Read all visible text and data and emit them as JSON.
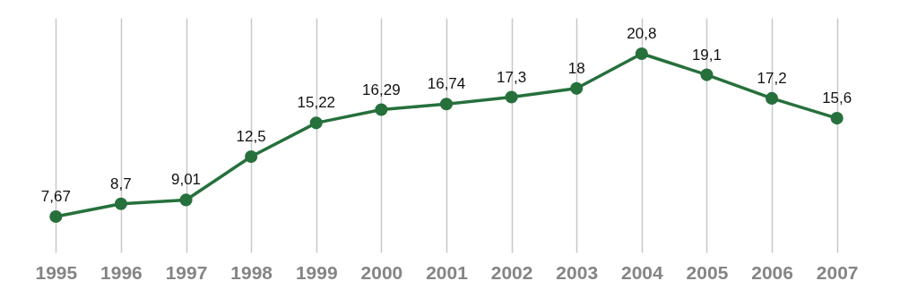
{
  "chart_data": {
    "type": "line",
    "categories": [
      "1995",
      "1996",
      "1997",
      "1998",
      "1999",
      "2000",
      "2001",
      "2002",
      "2003",
      "2004",
      "2005",
      "2006",
      "2007"
    ],
    "series": [
      {
        "color": "#26703c",
        "values": [
          7.67,
          8.7,
          9.01,
          12.5,
          15.22,
          16.29,
          16.74,
          17.3,
          18,
          20.8,
          19.1,
          17.2,
          15.6
        ],
        "value_labels": [
          "7,67",
          "8,7",
          "9,01",
          "12,5",
          "15,22",
          "16,29",
          "16,74",
          "17,3",
          "18",
          "20,8",
          "19,1",
          "17,2",
          "15,6"
        ]
      }
    ],
    "grid": "x",
    "marker": "circle",
    "line_style": "solid",
    "tick_labels": "x"
  }
}
